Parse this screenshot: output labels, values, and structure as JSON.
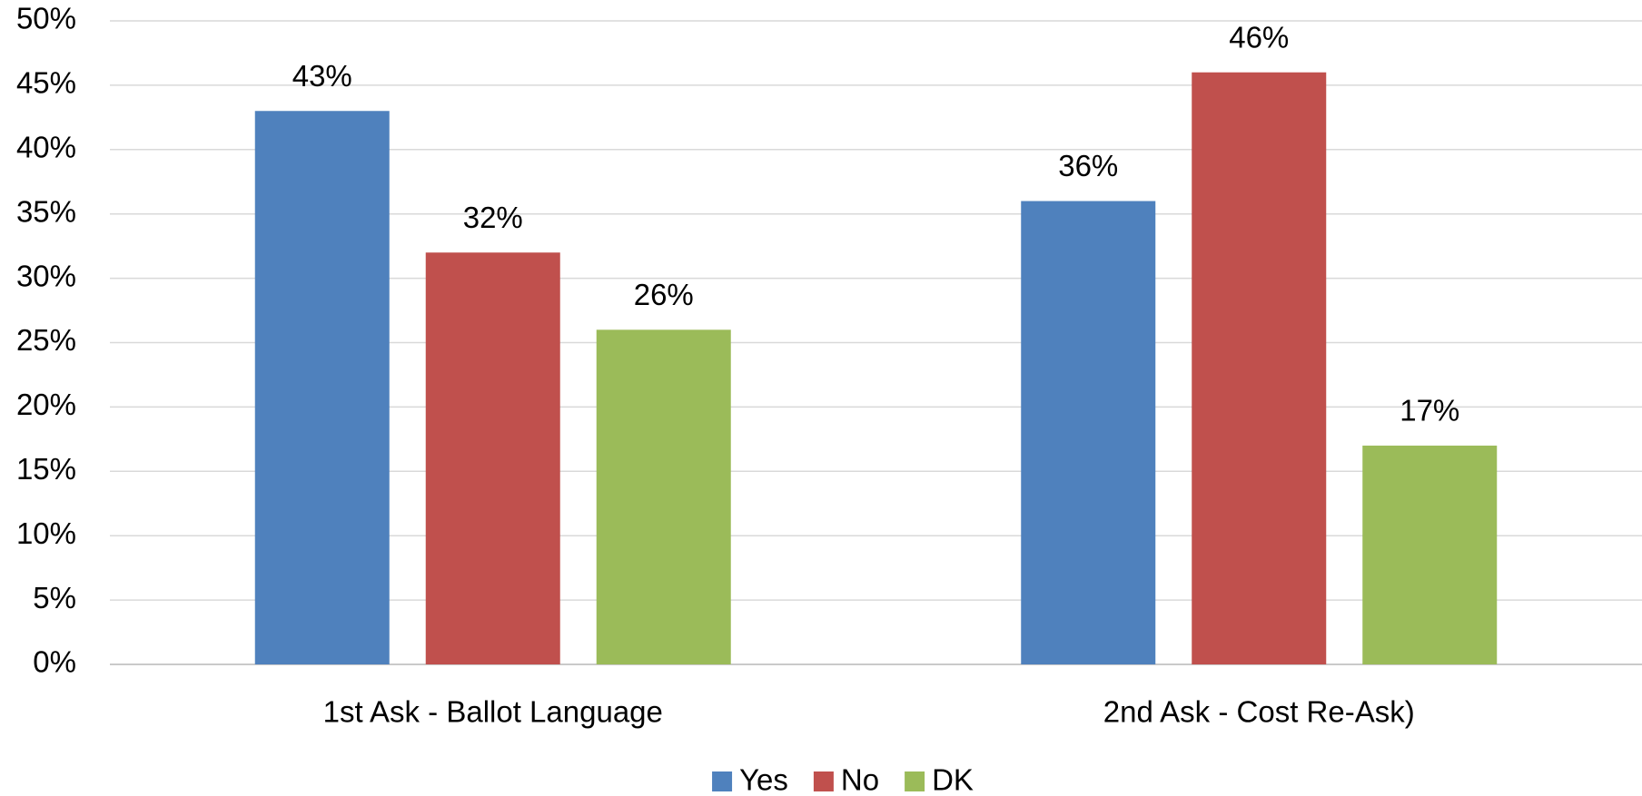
{
  "chart_data": {
    "type": "bar",
    "categories": [
      "1st Ask - Ballot Language",
      "2nd Ask - Cost Re-Ask)"
    ],
    "series": [
      {
        "name": "Yes",
        "color": "#4f81bd",
        "values": [
          43,
          36
        ],
        "value_labels": [
          "43%",
          "36%"
        ]
      },
      {
        "name": "No",
        "color": "#c0504d",
        "values": [
          32,
          46
        ],
        "value_labels": [
          "32%",
          "46%"
        ]
      },
      {
        "name": "DK",
        "color": "#9bbb59",
        "values": [
          26,
          17
        ],
        "value_labels": [
          "26%",
          "17%"
        ]
      }
    ],
    "ylim": [
      0,
      50
    ],
    "yticks": [
      {
        "value": 0,
        "label": "0%"
      },
      {
        "value": 5,
        "label": "5%"
      },
      {
        "value": 10,
        "label": "10%"
      },
      {
        "value": 15,
        "label": "15%"
      },
      {
        "value": 20,
        "label": "20%"
      },
      {
        "value": 25,
        "label": "25%"
      },
      {
        "value": 30,
        "label": "30%"
      },
      {
        "value": 35,
        "label": "35%"
      },
      {
        "value": 40,
        "label": "40%"
      },
      {
        "value": 45,
        "label": "45%"
      },
      {
        "value": 50,
        "label": "50%"
      }
    ],
    "grid": true,
    "legend": "bottom"
  }
}
